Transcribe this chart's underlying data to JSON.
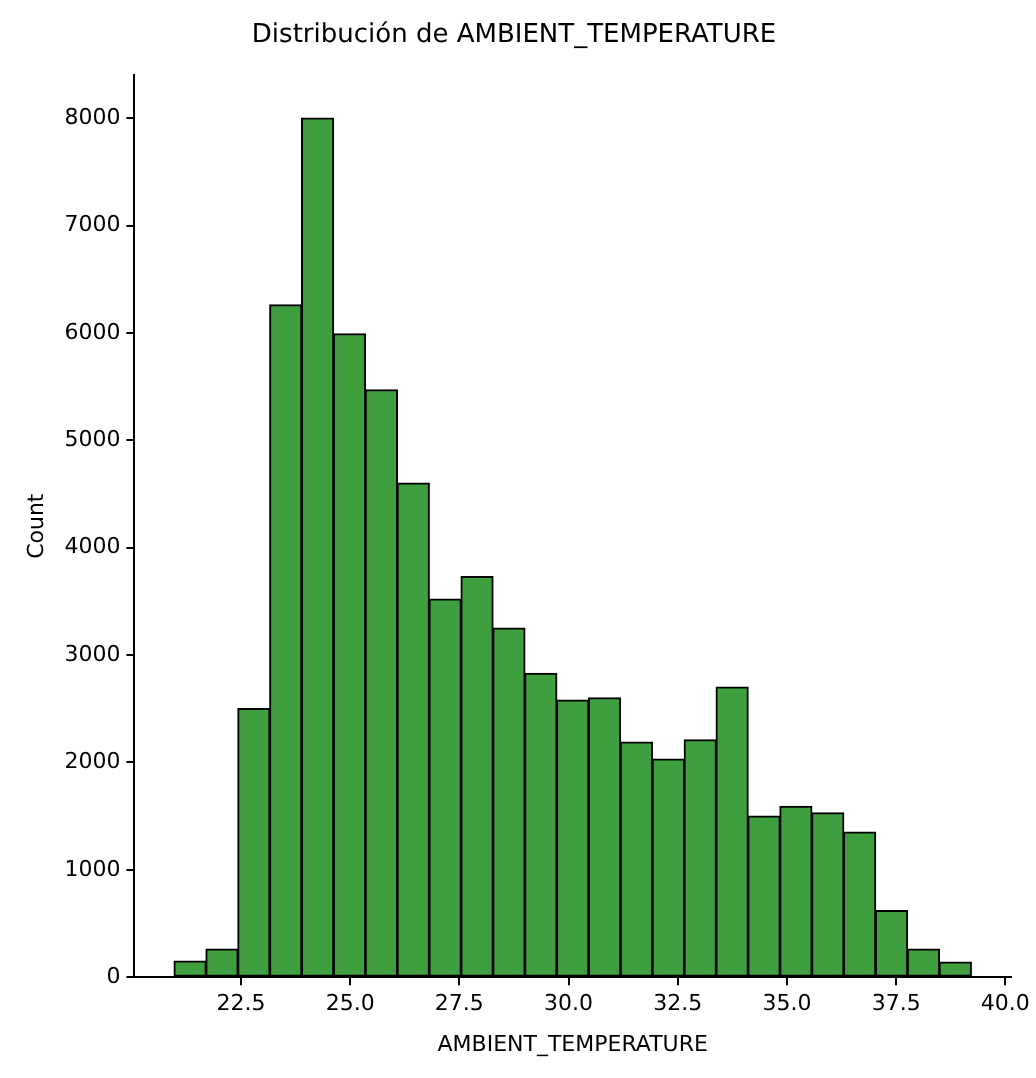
{
  "chart_data": {
    "type": "histogram",
    "title": "Distribución de AMBIENT_TEMPERATURE",
    "xlabel": "AMBIENT_TEMPERATURE",
    "ylabel": "Count",
    "bins": [
      20.97,
      21.7,
      22.43,
      23.16,
      23.89,
      24.62,
      25.35,
      26.08,
      26.81,
      27.54,
      28.27,
      29.0,
      29.73,
      30.46,
      31.19,
      31.92,
      32.65,
      33.38,
      34.11,
      34.84,
      35.57,
      36.3,
      37.03,
      37.76,
      38.49,
      39.22
    ],
    "values": [
      150,
      260,
      2500,
      6260,
      8000,
      5990,
      5470,
      4600,
      3520,
      3730,
      3250,
      2830,
      2580,
      2600,
      2190,
      2030,
      2210,
      2700,
      1500,
      1590,
      1530,
      1350,
      620,
      260,
      140
    ],
    "color": "#3f9f3f",
    "xlim": [
      20.06,
      40.13
    ],
    "xticks": [
      {
        "value": 22.5,
        "label": "22.5"
      },
      {
        "value": 25,
        "label": "25.0"
      },
      {
        "value": 27.5,
        "label": "27.5"
      },
      {
        "value": 30,
        "label": "30.0"
      },
      {
        "value": 32.5,
        "label": "32.5"
      },
      {
        "value": 35,
        "label": "35.0"
      },
      {
        "value": 37.5,
        "label": "37.5"
      },
      {
        "value": 40,
        "label": "40.0"
      }
    ],
    "ylim": [
      0,
      8400
    ],
    "yticks": [
      0,
      1000,
      2000,
      3000,
      4000,
      5000,
      6000,
      7000,
      8000
    ]
  }
}
